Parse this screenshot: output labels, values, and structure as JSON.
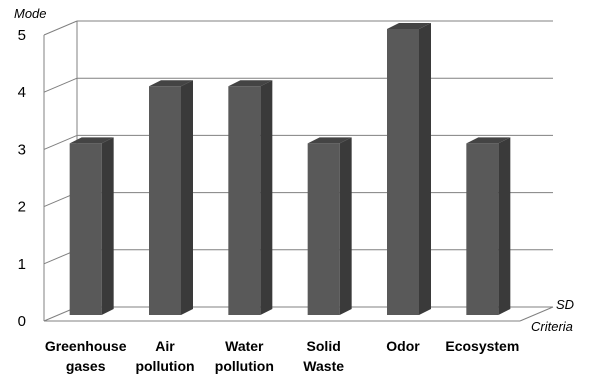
{
  "chart_data": {
    "type": "bar",
    "categories": [
      [
        "Greenhouse",
        "gases"
      ],
      [
        "Air",
        "pollution"
      ],
      [
        "Water",
        "pollution"
      ],
      [
        "Solid",
        "Waste"
      ],
      [
        "Odor"
      ],
      [
        "Ecosystem"
      ]
    ],
    "values": [
      3,
      4,
      4,
      3,
      5,
      3
    ],
    "ylabel": "Mode",
    "xlabel": "Criteria",
    "zlabel": "SD",
    "ylim": [
      0,
      5
    ],
    "yticks": [
      "0",
      "1",
      "2",
      "3",
      "4",
      "5"
    ],
    "grid": true,
    "style": "3d-column"
  },
  "colors": {
    "bar_front": "#595959",
    "bar_side": "#3a3a3a",
    "bar_top": "#444444",
    "grid": "#808080",
    "axis": "#808080"
  }
}
